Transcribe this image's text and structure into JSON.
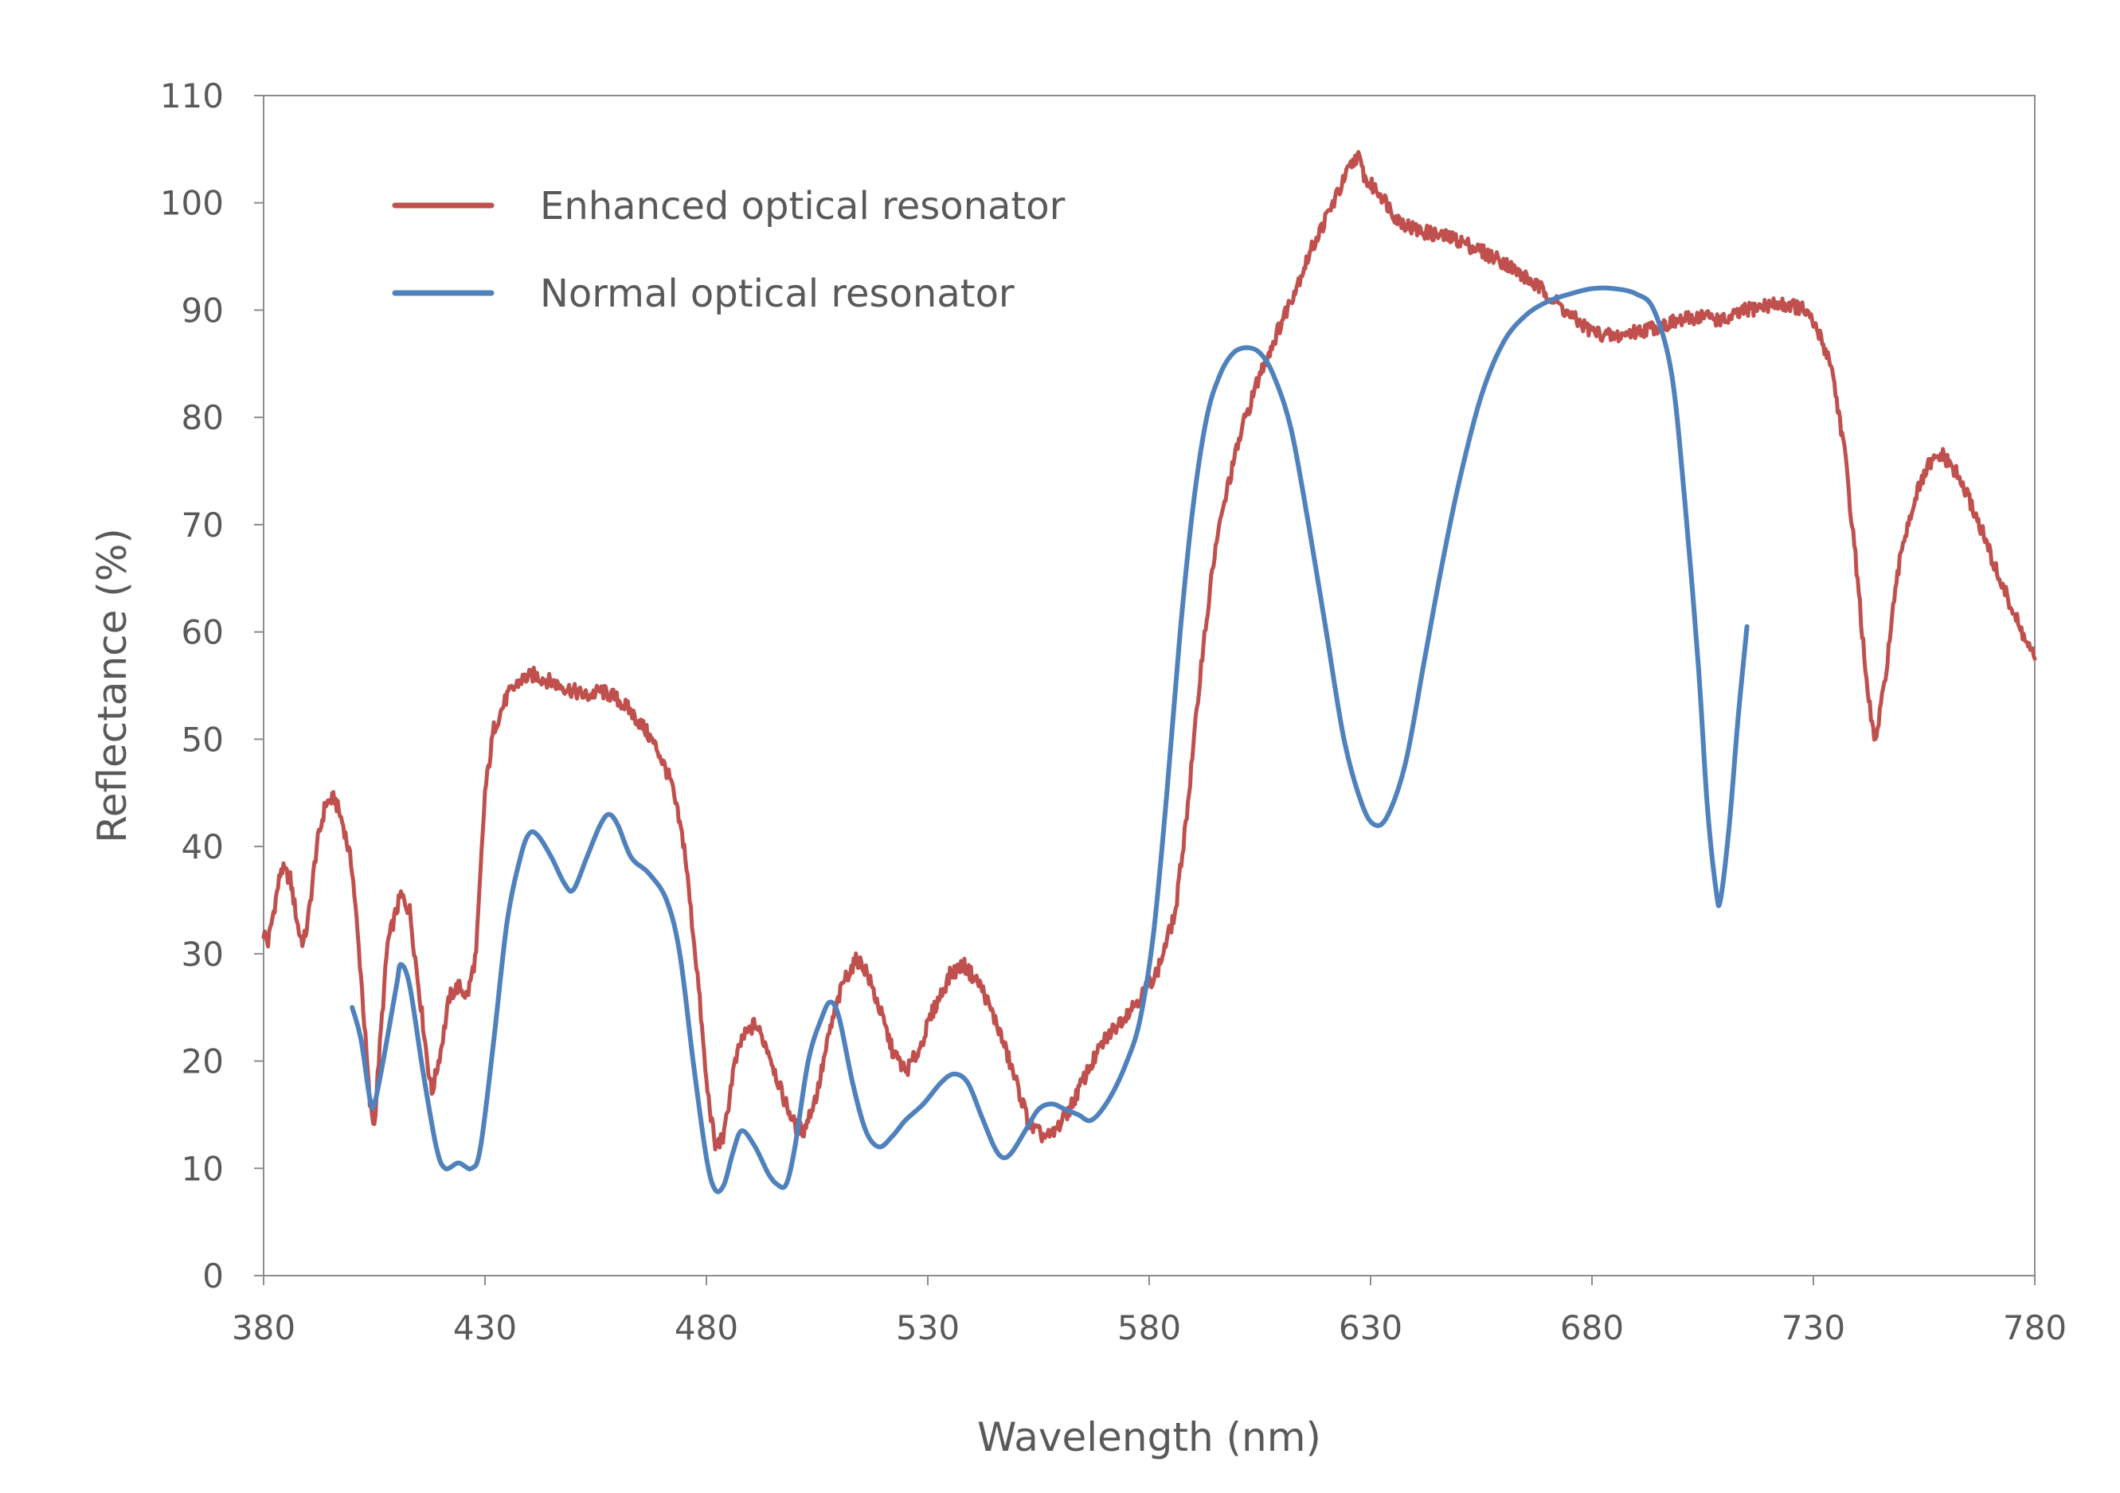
{
  "chart_data": {
    "type": "line",
    "title": "",
    "xlabel": "Wavelength (nm)",
    "ylabel": "Reflectance (%)",
    "xlim": [
      380,
      780
    ],
    "ylim": [
      0,
      110
    ],
    "x_ticks": [
      380,
      430,
      480,
      530,
      580,
      630,
      680,
      730,
      780
    ],
    "y_ticks": [
      0,
      10,
      20,
      30,
      40,
      50,
      60,
      70,
      80,
      90,
      100,
      110
    ],
    "grid": false,
    "legend_position": "top-left",
    "series": [
      {
        "name": "Enhanced optical resonator",
        "color": "#c0504d",
        "points": [
          [
            380,
            32
          ],
          [
            381,
            31
          ],
          [
            384,
            38
          ],
          [
            386,
            37
          ],
          [
            388,
            32
          ],
          [
            389,
            31
          ],
          [
            390,
            33
          ],
          [
            392,
            40
          ],
          [
            394,
            44
          ],
          [
            396,
            44.5
          ],
          [
            398,
            42
          ],
          [
            400,
            38
          ],
          [
            402,
            28
          ],
          [
            404,
            16
          ],
          [
            405,
            14
          ],
          [
            406,
            20
          ],
          [
            408,
            31
          ],
          [
            411,
            35.5
          ],
          [
            413,
            34
          ],
          [
            415,
            27
          ],
          [
            417,
            20
          ],
          [
            418,
            17
          ],
          [
            420,
            21
          ],
          [
            422,
            26
          ],
          [
            424,
            27
          ],
          [
            426,
            26
          ],
          [
            428,
            30
          ],
          [
            430,
            45
          ],
          [
            432,
            51
          ],
          [
            435,
            54
          ],
          [
            438,
            55.5
          ],
          [
            441,
            56
          ],
          [
            444,
            55.5
          ],
          [
            447,
            55
          ],
          [
            450,
            54.5
          ],
          [
            453,
            54
          ],
          [
            456,
            54.5
          ],
          [
            459,
            54
          ],
          [
            462,
            53
          ],
          [
            466,
            51
          ],
          [
            469,
            49
          ],
          [
            472,
            46
          ],
          [
            475,
            40
          ],
          [
            478,
            28
          ],
          [
            480,
            18
          ],
          [
            482,
            12
          ],
          [
            484,
            13
          ],
          [
            486,
            19
          ],
          [
            488,
            22
          ],
          [
            491,
            23.5
          ],
          [
            494,
            21
          ],
          [
            497,
            17
          ],
          [
            500,
            14
          ],
          [
            502,
            13.5
          ],
          [
            505,
            17
          ],
          [
            508,
            23
          ],
          [
            511,
            27.5
          ],
          [
            514,
            29.5
          ],
          [
            516,
            28.5
          ],
          [
            519,
            25
          ],
          [
            522,
            21
          ],
          [
            525,
            19
          ],
          [
            528,
            21
          ],
          [
            531,
            24.5
          ],
          [
            535,
            28
          ],
          [
            538,
            29
          ],
          [
            542,
            27
          ],
          [
            546,
            23
          ],
          [
            550,
            18
          ],
          [
            553,
            14
          ],
          [
            556,
            13
          ],
          [
            558,
            13
          ],
          [
            562,
            15.5
          ],
          [
            566,
            19
          ],
          [
            570,
            22
          ],
          [
            574,
            24
          ],
          [
            578,
            26
          ],
          [
            582,
            28.5
          ],
          [
            586,
            34
          ],
          [
            589,
            45
          ],
          [
            592,
            58
          ],
          [
            595,
            68
          ],
          [
            598,
            74
          ],
          [
            601,
            79
          ],
          [
            605,
            84
          ],
          [
            609,
            88
          ],
          [
            613,
            92
          ],
          [
            617,
            96
          ],
          [
            621,
            99.5
          ],
          [
            625,
            103
          ],
          [
            627,
            104.5
          ],
          [
            629,
            102
          ],
          [
            632,
            101
          ],
          [
            636,
            98.5
          ],
          [
            640,
            97.5
          ],
          [
            645,
            97
          ],
          [
            650,
            96.5
          ],
          [
            655,
            95.5
          ],
          [
            660,
            94.5
          ],
          [
            665,
            93
          ],
          [
            670,
            91.5
          ],
          [
            675,
            89.5
          ],
          [
            680,
            88
          ],
          [
            685,
            87.5
          ],
          [
            690,
            88
          ],
          [
            695,
            88.5
          ],
          [
            700,
            89
          ],
          [
            705,
            89.5
          ],
          [
            710,
            89
          ],
          [
            715,
            90
          ],
          [
            720,
            90.5
          ],
          [
            725,
            90.5
          ],
          [
            728,
            90
          ],
          [
            731,
            88
          ],
          [
            734,
            85
          ],
          [
            737,
            77
          ],
          [
            740,
            65
          ],
          [
            742,
            55
          ],
          [
            744,
            49.5
          ],
          [
            746,
            55
          ],
          [
            748,
            62
          ],
          [
            750,
            68
          ],
          [
            753,
            72.5
          ],
          [
            756,
            75.5
          ],
          [
            759,
            76.5
          ],
          [
            762,
            75
          ],
          [
            765,
            72.5
          ],
          [
            768,
            69.5
          ],
          [
            771,
            66
          ],
          [
            774,
            63
          ],
          [
            777,
            60
          ],
          [
            780,
            57.5
          ]
        ]
      },
      {
        "name": "Normal optical resonator",
        "color": "#4f81bd",
        "points": [
          [
            400,
            25
          ],
          [
            402,
            22
          ],
          [
            404,
            16.5
          ],
          [
            405,
            16
          ],
          [
            407,
            20
          ],
          [
            410,
            27
          ],
          [
            411,
            29
          ],
          [
            413,
            27
          ],
          [
            416,
            19
          ],
          [
            419,
            12
          ],
          [
            421,
            10
          ],
          [
            424,
            10.5
          ],
          [
            427,
            10
          ],
          [
            429,
            12
          ],
          [
            432,
            22
          ],
          [
            435,
            33
          ],
          [
            438,
            39
          ],
          [
            440,
            41.2
          ],
          [
            442,
            41
          ],
          [
            445,
            39
          ],
          [
            448,
            36.5
          ],
          [
            450,
            36
          ],
          [
            453,
            39
          ],
          [
            456,
            42
          ],
          [
            458,
            43
          ],
          [
            460,
            42
          ],
          [
            463,
            39
          ],
          [
            467,
            37.5
          ],
          [
            471,
            35
          ],
          [
            474,
            30
          ],
          [
            477,
            20
          ],
          [
            480,
            11
          ],
          [
            482,
            8
          ],
          [
            484,
            8.5
          ],
          [
            486,
            11.5
          ],
          [
            488,
            13.5
          ],
          [
            491,
            12
          ],
          [
            494,
            9.5
          ],
          [
            496,
            8.5
          ],
          [
            498,
            8.5
          ],
          [
            500,
            12
          ],
          [
            503,
            20
          ],
          [
            506,
            24
          ],
          [
            508,
            25.5
          ],
          [
            510,
            24
          ],
          [
            513,
            18
          ],
          [
            516,
            13.5
          ],
          [
            519,
            12
          ],
          [
            522,
            13
          ],
          [
            525,
            14.5
          ],
          [
            529,
            16
          ],
          [
            533,
            18
          ],
          [
            536,
            18.8
          ],
          [
            539,
            18
          ],
          [
            542,
            15
          ],
          [
            545,
            12
          ],
          [
            547,
            11
          ],
          [
            549,
            11.5
          ],
          [
            552,
            13.5
          ],
          [
            555,
            15.5
          ],
          [
            558,
            16
          ],
          [
            561,
            15.5
          ],
          [
            564,
            15
          ],
          [
            567,
            14.5
          ],
          [
            571,
            16.5
          ],
          [
            575,
            20
          ],
          [
            578,
            24
          ],
          [
            581,
            32
          ],
          [
            584,
            45
          ],
          [
            587,
            60
          ],
          [
            590,
            72
          ],
          [
            593,
            80
          ],
          [
            596,
            84
          ],
          [
            599,
            86
          ],
          [
            602,
            86.5
          ],
          [
            605,
            86
          ],
          [
            608,
            84
          ],
          [
            612,
            79
          ],
          [
            616,
            70
          ],
          [
            620,
            60
          ],
          [
            624,
            50
          ],
          [
            628,
            44
          ],
          [
            631,
            42
          ],
          [
            634,
            43
          ],
          [
            638,
            48
          ],
          [
            642,
            57
          ],
          [
            646,
            66
          ],
          [
            650,
            74
          ],
          [
            655,
            82
          ],
          [
            660,
            87
          ],
          [
            665,
            89.5
          ],
          [
            670,
            90.8
          ],
          [
            675,
            91.5
          ],
          [
            680,
            92
          ],
          [
            685,
            92
          ],
          [
            690,
            91.5
          ],
          [
            694,
            90
          ],
          [
            698,
            84
          ],
          [
            701,
            72
          ],
          [
            704,
            57
          ],
          [
            706,
            44
          ],
          [
            708,
            36
          ],
          [
            709,
            35
          ],
          [
            711,
            42
          ],
          [
            713,
            52
          ],
          [
            715,
            60.5
          ]
        ]
      }
    ]
  }
}
